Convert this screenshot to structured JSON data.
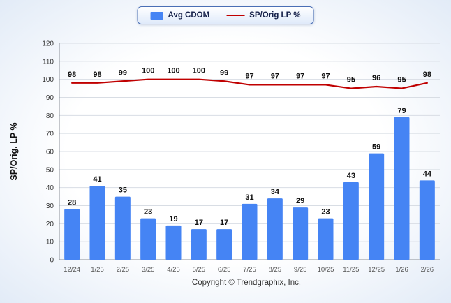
{
  "chart_data": {
    "type": "combo",
    "categories": [
      "12/24",
      "1/25",
      "2/25",
      "3/25",
      "4/25",
      "5/25",
      "6/25",
      "7/25",
      "8/25",
      "9/25",
      "10/25",
      "11/25",
      "12/25",
      "1/26",
      "2/26"
    ],
    "series": [
      {
        "name": "Avg CDOM",
        "type": "bar",
        "color": "#4584f4",
        "values": [
          28,
          41,
          35,
          23,
          19,
          17,
          17,
          31,
          34,
          29,
          23,
          43,
          59,
          79,
          44
        ]
      },
      {
        "name": "SP/Orig LP %",
        "type": "line",
        "color": "#c00000",
        "values": [
          98,
          98,
          99,
          100,
          100,
          100,
          99,
          97,
          97,
          97,
          97,
          95,
          96,
          95,
          98
        ]
      }
    ],
    "title": "",
    "xlabel": "",
    "ylabel": "SP/Orig. LP %",
    "ylim": [
      0,
      120
    ],
    "ytick_step": 10,
    "grid": true,
    "legend_position": "top"
  },
  "footer": {
    "text": "Copyright © Trendgraphix, Inc."
  }
}
